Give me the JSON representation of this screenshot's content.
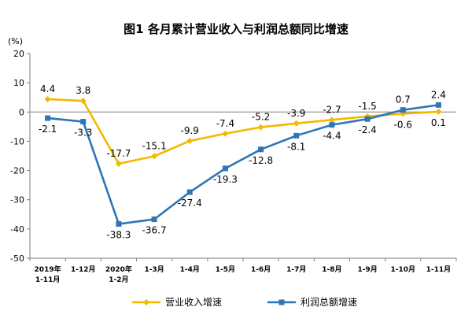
{
  "chart_data": {
    "type": "line",
    "title": "图1  各月累计营业收入与利润总额同比增速",
    "unit_label": "(%)",
    "ylim": [
      -50,
      20
    ],
    "yticks": [
      20,
      10,
      0,
      -10,
      -20,
      -30,
      -40,
      -50
    ],
    "grid": false,
    "legend_position": "bottom",
    "categories": [
      [
        "2019年",
        "1-11月"
      ],
      [
        "1-12月"
      ],
      [
        "2020年",
        "1-2月"
      ],
      [
        "1-3月"
      ],
      [
        "1-4月"
      ],
      [
        "1-5月"
      ],
      [
        "1-6月"
      ],
      [
        "1-7月"
      ],
      [
        "1-8月"
      ],
      [
        "1-9月"
      ],
      [
        "1-10月"
      ],
      [
        "1-11月"
      ]
    ],
    "series": [
      {
        "name": "营业收入增速",
        "color": "#F5B800",
        "marker": "diamond",
        "values": [
          4.4,
          3.8,
          -17.7,
          -15.1,
          -9.9,
          -7.4,
          -5.2,
          -3.9,
          -2.7,
          -1.5,
          -0.6,
          0.1
        ],
        "labels": [
          "4.4",
          "3.8",
          "-17.7",
          "-15.1",
          "-9.9",
          "-7.4",
          "-5.2",
          "-3.9",
          "-2.7",
          "-1.5",
          "-0.6",
          "0.1"
        ],
        "label_side": [
          "above",
          "above",
          "above",
          "above",
          "above",
          "above",
          "above",
          "above",
          "above",
          "above",
          "below",
          "below"
        ]
      },
      {
        "name": "利润总额增速",
        "color": "#2E75B6",
        "marker": "square",
        "values": [
          -2.1,
          -3.3,
          -38.3,
          -36.7,
          -27.4,
          -19.3,
          -12.8,
          -8.1,
          -4.4,
          -2.4,
          0.7,
          2.4
        ],
        "labels": [
          "-2.1",
          "-3.3",
          "-38.3",
          "-36.7",
          "-27.4",
          "-19.3",
          "-12.8",
          "-8.1",
          "-4.4",
          "-2.4",
          "0.7",
          "2.4"
        ],
        "label_side": [
          "below",
          "below",
          "below",
          "below",
          "below",
          "below",
          "below",
          "below",
          "below",
          "below",
          "above",
          "above"
        ]
      }
    ]
  }
}
